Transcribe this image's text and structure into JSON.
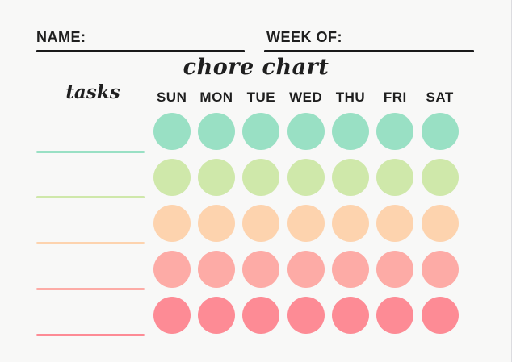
{
  "page": {
    "background": "#f8f8f7",
    "ink_color": "#1f1f1f",
    "rule_color": "#1a1a1a"
  },
  "header": {
    "name_label": "NAME:",
    "name_value": "",
    "week_label": "WEEK OF:",
    "week_value": ""
  },
  "title": "chore chart",
  "tasks": {
    "label": "tasks"
  },
  "days": [
    "SUN",
    "MON",
    "TUE",
    "WED",
    "THU",
    "FRI",
    "SAT"
  ],
  "rows": [
    {
      "task_value": "",
      "color": "#99e0c4"
    },
    {
      "task_value": "",
      "color": "#cfe8aa"
    },
    {
      "task_value": "",
      "color": "#fdd3ae"
    },
    {
      "task_value": "",
      "color": "#fdaba6"
    },
    {
      "task_value": "",
      "color": "#fd8b95"
    }
  ]
}
